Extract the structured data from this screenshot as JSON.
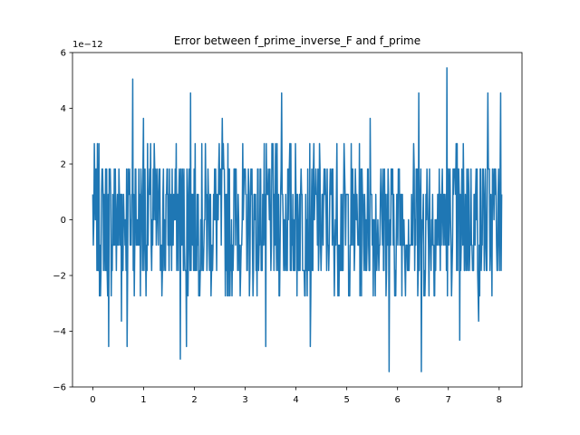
{
  "chart_data": {
    "type": "line",
    "title": "Error between f_prime_inverse_F and f_prime",
    "xlabel": "",
    "ylabel": "",
    "y_offset_label": "1e−12",
    "xlim": [
      -0.4,
      8.45
    ],
    "ylim": [
      -6,
      6
    ],
    "x_ticks": [
      0,
      1,
      2,
      3,
      4,
      5,
      6,
      7,
      8
    ],
    "x_tick_labels": [
      "0",
      "1",
      "2",
      "3",
      "4",
      "5",
      "6",
      "7",
      "8"
    ],
    "y_ticks": [
      -6,
      -4,
      -2,
      0,
      2,
      4,
      6
    ],
    "y_tick_labels": [
      "−6",
      "−4",
      "−2",
      "0",
      "2",
      "4",
      "6"
    ],
    "grid": false,
    "legend": "none",
    "series": [
      {
        "color": "#1f77b4",
        "x_range": [
          0,
          8.05
        ],
        "sample_count": 800,
        "seed": 7,
        "levels": [
          -2.73,
          -1.82,
          -0.91,
          0.0,
          0.91,
          1.82,
          2.73
        ],
        "spikes": [
          {
            "x": 0.79,
            "y": 5.05
          },
          {
            "x": 1.0,
            "y": 3.64
          },
          {
            "x": 1.92,
            "y": 4.55
          },
          {
            "x": 3.72,
            "y": 4.55
          },
          {
            "x": 6.42,
            "y": 4.55
          },
          {
            "x": 6.97,
            "y": 5.45
          },
          {
            "x": 7.78,
            "y": 4.55
          },
          {
            "x": 8.03,
            "y": 4.55
          },
          {
            "x": 0.31,
            "y": -4.55
          },
          {
            "x": 0.68,
            "y": -4.55
          },
          {
            "x": 1.72,
            "y": -5.0
          },
          {
            "x": 1.84,
            "y": -4.55
          },
          {
            "x": 3.41,
            "y": -4.55
          },
          {
            "x": 4.28,
            "y": -4.55
          },
          {
            "x": 5.83,
            "y": -5.45
          },
          {
            "x": 6.47,
            "y": -5.45
          },
          {
            "x": 7.22,
            "y": -4.32
          },
          {
            "x": 0.56,
            "y": -3.64
          },
          {
            "x": 2.55,
            "y": 3.64
          },
          {
            "x": 5.46,
            "y": 3.64
          },
          {
            "x": 7.6,
            "y": -3.64
          }
        ]
      }
    ]
  }
}
